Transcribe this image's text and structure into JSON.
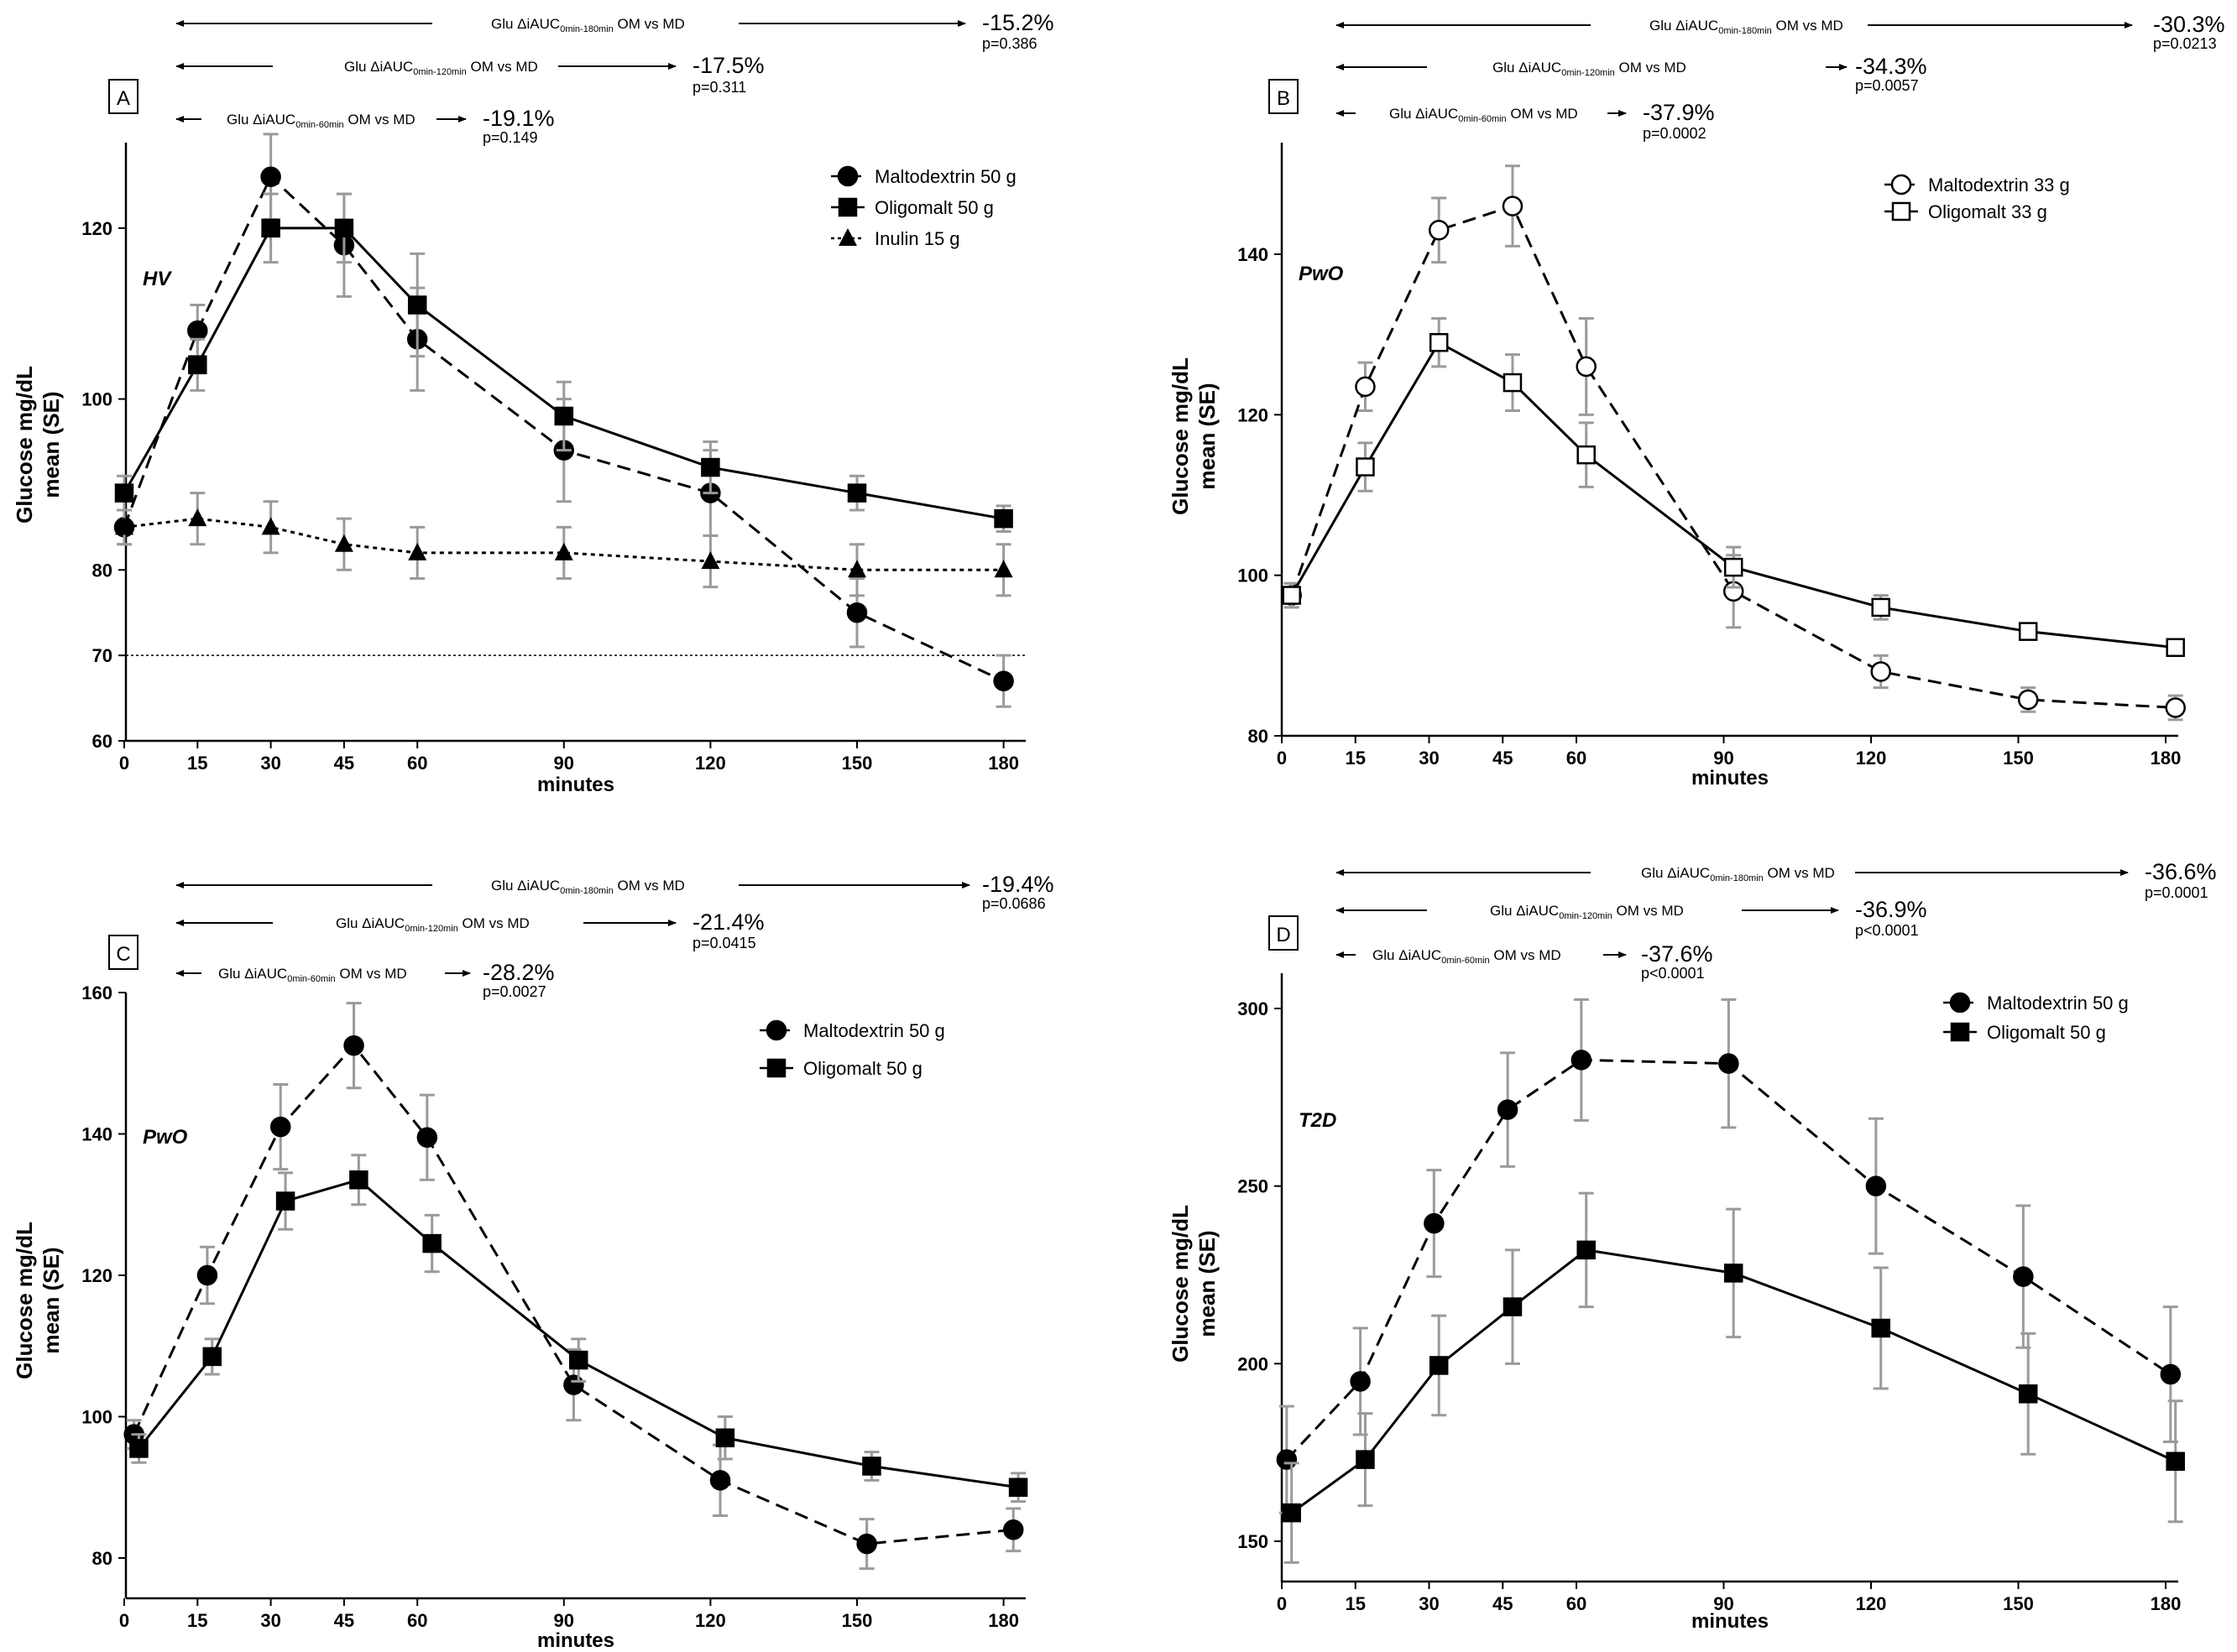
{
  "figure": {
    "x_label": "minutes",
    "y_label_line1": "Glucose mg/dL",
    "y_label_line2": "mean (SE)"
  },
  "chart_data": [
    {
      "panel": "A",
      "type": "line",
      "group_label": "HV",
      "x_ticks": [
        0,
        15,
        30,
        45,
        60,
        90,
        120,
        150,
        180
      ],
      "y_ticks": [
        60,
        70,
        80,
        100,
        120
      ],
      "ylim": [
        60,
        130
      ],
      "xlabel": "minutes",
      "ylabel": "Glucose mg/dL mean (SE)",
      "reference_line": 70,
      "series": [
        {
          "name": "Maltodextrin 50 g",
          "marker": "circle-filled",
          "dash": "dashed",
          "x": [
            0,
            15,
            30,
            45,
            60,
            90,
            120,
            150,
            180
          ],
          "values": [
            85,
            108,
            126,
            118,
            107,
            94,
            89,
            75,
            67
          ],
          "se": [
            2,
            3,
            5,
            6,
            6,
            6,
            5,
            4,
            3
          ]
        },
        {
          "name": "Oligomalt 50 g",
          "marker": "square-filled",
          "dash": "solid",
          "x": [
            0,
            15,
            30,
            45,
            60,
            90,
            120,
            150,
            180
          ],
          "values": [
            89,
            104,
            120,
            120,
            111,
            98,
            92,
            89,
            86
          ],
          "se": [
            2,
            3,
            4,
            4,
            6,
            4,
            3,
            2,
            1.5
          ]
        },
        {
          "name": "Inulin 15 g",
          "marker": "triangle-filled",
          "dash": "dotted",
          "x": [
            0,
            15,
            30,
            45,
            60,
            90,
            120,
            150,
            180
          ],
          "values": [
            85,
            86,
            85,
            83,
            82,
            82,
            81,
            80,
            80
          ],
          "se": [
            2,
            3,
            3,
            3,
            3,
            3,
            3,
            3,
            3
          ]
        }
      ],
      "comparisons": [
        {
          "label_prefix": "Glu ΔiAUC",
          "sub": "0min-60min",
          "label_suffix": " OM vs MD",
          "pct": "-19.1%",
          "p": "p=0.149"
        },
        {
          "label_prefix": "Glu ΔiAUC",
          "sub": "0min-120min",
          "label_suffix": " OM vs MD",
          "pct": "-17.5%",
          "p": "p=0.311"
        },
        {
          "label_prefix": "Glu ΔiAUC",
          "sub": "0min-180min",
          "label_suffix": " OM vs MD",
          "pct": "-15.2%",
          "p": "p=0.386"
        }
      ]
    },
    {
      "panel": "B",
      "type": "line",
      "group_label": "PwO",
      "x_ticks": [
        0,
        15,
        30,
        45,
        60,
        90,
        120,
        150,
        180
      ],
      "y_ticks": [
        80,
        100,
        120,
        140
      ],
      "ylim": [
        80,
        150
      ],
      "xlabel": "minutes",
      "ylabel": "Glucose mg/dL mean (SE)",
      "series": [
        {
          "name": "Maltodextrin 33 g",
          "marker": "circle-open",
          "dash": "dashed",
          "x": [
            2,
            17,
            32,
            47,
            62,
            92,
            122,
            152,
            182
          ],
          "values": [
            97.5,
            123.5,
            143,
            146,
            126,
            98,
            88,
            84.5,
            83.5
          ],
          "se": [
            1.5,
            3,
            4,
            5,
            6,
            4.5,
            2,
            1.5,
            1.5
          ]
        },
        {
          "name": "Oligomalt 33 g",
          "marker": "square-open",
          "dash": "solid",
          "x": [
            2,
            17,
            32,
            47,
            62,
            92,
            122,
            152,
            182
          ],
          "values": [
            97.5,
            113.5,
            129,
            124,
            115,
            101,
            96,
            93,
            91
          ],
          "se": [
            1.5,
            3,
            3,
            3.5,
            4,
            2.5,
            1.5,
            1,
            1
          ]
        }
      ],
      "comparisons": [
        {
          "label_prefix": "Glu ΔiAUC",
          "sub": "0min-60min",
          "label_suffix": " OM vs MD",
          "pct": "-37.9%",
          "p": "p=0.0002"
        },
        {
          "label_prefix": "Glu ΔiAUC",
          "sub": "0min-120min",
          "label_suffix": " OM vs MD",
          "pct": "-34.3%",
          "p": "p=0.0057"
        },
        {
          "label_prefix": "Glu ΔiAUC",
          "sub": "0min-180min",
          "label_suffix": " OM vs MD",
          "pct": "-30.3%",
          "p": "p=0.0213"
        }
      ]
    },
    {
      "panel": "C",
      "type": "line",
      "group_label": "PwO",
      "x_ticks": [
        0,
        15,
        30,
        45,
        60,
        90,
        120,
        150,
        180
      ],
      "y_ticks": [
        80,
        100,
        120,
        140,
        160
      ],
      "ylim": [
        74,
        160
      ],
      "xlabel": "minutes",
      "ylabel": "Glucose mg/dL mean (SE)",
      "series": [
        {
          "name": "Maltodextrin 50 g",
          "marker": "circle-filled",
          "dash": "dashed",
          "x": [
            2,
            17,
            32,
            47,
            62,
            92,
            122,
            152,
            182
          ],
          "values": [
            97.5,
            120,
            141,
            152.5,
            139.5,
            104.5,
            91,
            82,
            84
          ],
          "se": [
            2,
            4,
            6,
            6,
            6,
            5,
            5,
            3.5,
            3
          ]
        },
        {
          "name": "Oligomalt 50 g",
          "marker": "square-filled",
          "dash": "solid",
          "x": [
            3,
            18,
            33,
            48,
            63,
            93,
            123,
            153,
            183
          ],
          "values": [
            95.5,
            108.5,
            130.5,
            133.5,
            124.5,
            108,
            97,
            93,
            90
          ],
          "se": [
            2,
            2.5,
            4,
            3.5,
            4,
            3,
            3,
            2,
            2
          ]
        }
      ],
      "comparisons": [
        {
          "label_prefix": "Glu ΔiAUC",
          "sub": "0min-60min",
          "label_suffix": " OM vs MD",
          "pct": "-28.2%",
          "p": "p=0.0027"
        },
        {
          "label_prefix": "Glu ΔiAUC",
          "sub": "0min-120min",
          "label_suffix": " OM vs MD",
          "pct": "-21.4%",
          "p": "p=0.0415"
        },
        {
          "label_prefix": "Glu ΔiAUC",
          "sub": "0min-180min",
          "label_suffix": " OM vs MD",
          "pct": "-19.4%",
          "p": "p=0.0686"
        }
      ]
    },
    {
      "panel": "D",
      "type": "line",
      "group_label": "T2D",
      "x_ticks": [
        0,
        15,
        30,
        45,
        60,
        90,
        120,
        150,
        180
      ],
      "y_ticks": [
        150,
        200,
        250,
        300
      ],
      "ylim": [
        140,
        310
      ],
      "xlabel": "minutes",
      "ylabel": "Glucose mg/dL mean (SE)",
      "series": [
        {
          "name": "Maltodextrin 50 g",
          "marker": "circle-filled",
          "dash": "dashed",
          "x": [
            1,
            16,
            31,
            46,
            61,
            91,
            121,
            151,
            181
          ],
          "values": [
            173,
            195,
            239.5,
            271.5,
            285.5,
            284.5,
            250,
            224.5,
            197
          ],
          "se": [
            15,
            15,
            15,
            16,
            17,
            18,
            19,
            20,
            19
          ]
        },
        {
          "name": "Oligomalt 50 g",
          "marker": "square-filled",
          "dash": "solid",
          "x": [
            2,
            17,
            32,
            47,
            62,
            92,
            122,
            152,
            182
          ],
          "values": [
            158,
            173,
            199.5,
            216,
            232,
            225.5,
            210,
            191.5,
            172.5
          ],
          "se": [
            14,
            13,
            14,
            16,
            16,
            18,
            17,
            17,
            17
          ]
        }
      ],
      "comparisons": [
        {
          "label_prefix": "Glu ΔiAUC",
          "sub": "0min-60min",
          "label_suffix": " OM vs MD",
          "pct": "-37.6%",
          "p": "p<0.0001"
        },
        {
          "label_prefix": "Glu ΔiAUC",
          "sub": "0min-120min",
          "label_suffix": " OM vs MD",
          "pct": "-36.9%",
          "p": "p<0.0001"
        },
        {
          "label_prefix": "Glu ΔiAUC",
          "sub": "0min-180min",
          "label_suffix": " OM vs MD",
          "pct": "-36.6%",
          "p": "p=0.0001"
        }
      ]
    }
  ]
}
